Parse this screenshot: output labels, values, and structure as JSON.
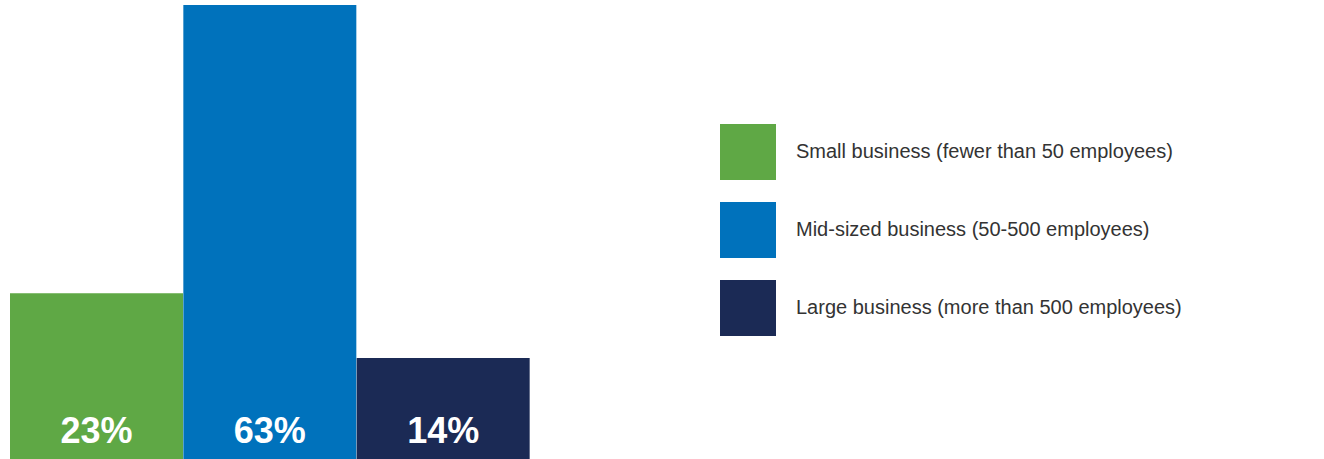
{
  "chart_data": {
    "type": "bar",
    "categories": [
      "Small business (fewer than 50 employees)",
      "Mid-sized business (50-500 employees)",
      "Large business (more than 500 employees)"
    ],
    "values": [
      23,
      63,
      14
    ],
    "value_labels": [
      "23%",
      "63%",
      "14%"
    ],
    "colors": [
      "#5fa845",
      "#0072bc",
      "#1b2a55"
    ],
    "data_labels": true,
    "tick_labels": false,
    "legend": "right"
  }
}
